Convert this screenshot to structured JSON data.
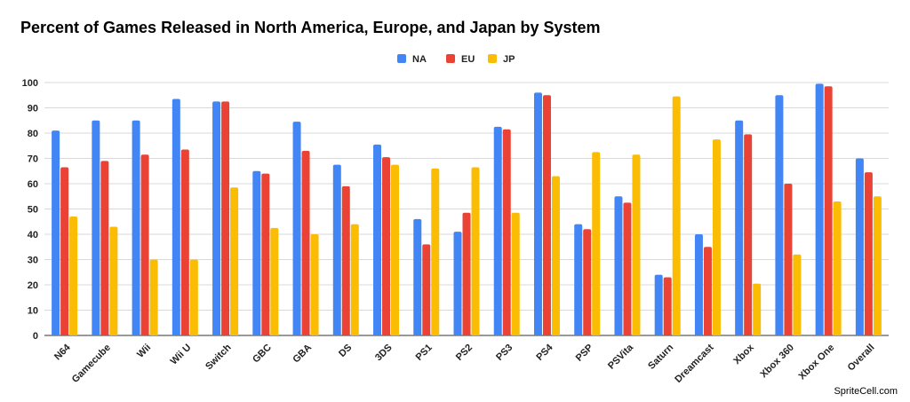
{
  "chart_data": {
    "type": "bar",
    "title": "Percent of Games Released in North America, Europe, and Japan by System",
    "xlabel": "",
    "ylabel": "",
    "ylim": [
      0,
      100
    ],
    "yticks": [
      0,
      10,
      20,
      30,
      40,
      50,
      60,
      70,
      80,
      90,
      100
    ],
    "grid": true,
    "legend_position": "top-center",
    "categories": [
      "N64",
      "Gamecube",
      "Wii",
      "Wii U",
      "Switch",
      "GBC",
      "GBA",
      "DS",
      "3DS",
      "PS1",
      "PS2",
      "PS3",
      "PS4",
      "PSP",
      "PSVita",
      "Saturn",
      "Dreamcast",
      "Xbox",
      "Xbox 360",
      "Xbox One",
      "Overall"
    ],
    "series": [
      {
        "name": "NA",
        "color": "#4285f4",
        "values": [
          81,
          85,
          85,
          93.5,
          92.5,
          65,
          84.5,
          67.5,
          75.5,
          46,
          41,
          82.5,
          96,
          44,
          55,
          24,
          40,
          85,
          95,
          99.5,
          70
        ]
      },
      {
        "name": "EU",
        "color": "#ea4335",
        "values": [
          66.5,
          69,
          71.5,
          73.5,
          92.5,
          64,
          73,
          59,
          70.5,
          36,
          48.5,
          81.5,
          95,
          42,
          52.5,
          23,
          35,
          79.5,
          60,
          98.5,
          64.5
        ]
      },
      {
        "name": "JP",
        "color": "#fbbc04",
        "values": [
          47,
          43,
          30,
          30,
          58.5,
          42.5,
          40,
          44,
          67.5,
          66,
          66.5,
          48.5,
          63,
          72.5,
          71.5,
          94.5,
          77.5,
          20.5,
          32,
          53,
          55
        ]
      }
    ]
  },
  "watermark": "SpriteCell.com"
}
